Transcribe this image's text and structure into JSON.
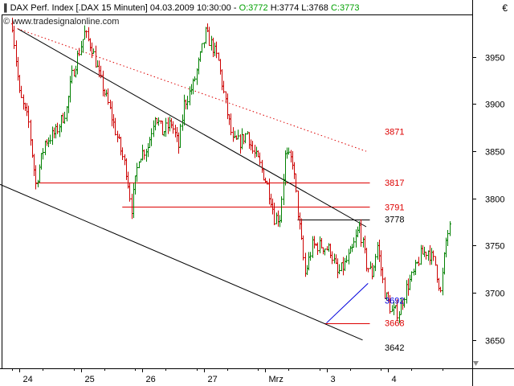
{
  "header": {
    "logo_glyph": "∥",
    "instrument": "DAX Perf. Index [.DAX  15 Minuten]",
    "datetime": "04.03.2009 10:30:00",
    "open": "O:3772",
    "high": "H:3774",
    "low": "L:3768",
    "close": "C:3773",
    "watermark": "© www.tradesignalonline.com",
    "currency": "€"
  },
  "colors": {
    "open": "#00a000",
    "high": "#000000",
    "low": "#000000",
    "close": "#00a000",
    "bull": "#008000",
    "bear": "#cc0000",
    "resistance": "#dd0000",
    "support_up": "#0000dd",
    "trend": "#000000"
  },
  "chart_data": {
    "type": "ohlc",
    "title": "DAX Perf. Index [.DAX  15 Minuten]",
    "ylim": [
      3620,
      3995
    ],
    "y_ticks": [
      3650,
      3700,
      3750,
      3800,
      3850,
      3900,
      3950
    ],
    "x_labels": [
      {
        "label": "24",
        "x": 4
      },
      {
        "label": "25",
        "x": 38
      },
      {
        "label": "26",
        "x": 72
      },
      {
        "label": "27",
        "x": 106
      },
      {
        "label": "Mrz",
        "x": 140
      },
      {
        "label": "3",
        "x": 174
      },
      {
        "label": "4",
        "x": 208
      }
    ],
    "bars_count": 242,
    "path_anchors": [
      [
        0,
        3985
      ],
      [
        4,
        3910
      ],
      [
        9,
        3880
      ],
      [
        13,
        3815
      ],
      [
        18,
        3860
      ],
      [
        24,
        3870
      ],
      [
        30,
        3895
      ],
      [
        33,
        3930
      ],
      [
        36,
        3950
      ],
      [
        40,
        3975
      ],
      [
        44,
        3960
      ],
      [
        48,
        3930
      ],
      [
        53,
        3900
      ],
      [
        58,
        3865
      ],
      [
        63,
        3830
      ],
      [
        66,
        3790
      ],
      [
        70,
        3845
      ],
      [
        75,
        3855
      ],
      [
        79,
        3890
      ],
      [
        83,
        3870
      ],
      [
        88,
        3880
      ],
      [
        92,
        3855
      ],
      [
        95,
        3900
      ],
      [
        100,
        3920
      ],
      [
        104,
        3950
      ],
      [
        107,
        3975
      ],
      [
        111,
        3960
      ],
      [
        114,
        3945
      ],
      [
        118,
        3900
      ],
      [
        122,
        3860
      ],
      [
        126,
        3860
      ],
      [
        130,
        3870
      ],
      [
        133,
        3850
      ],
      [
        136,
        3840
      ],
      [
        140,
        3820
      ],
      [
        143,
        3800
      ],
      [
        145,
        3780
      ],
      [
        148,
        3780
      ],
      [
        151,
        3845
      ],
      [
        155,
        3840
      ],
      [
        158,
        3785
      ],
      [
        162,
        3720
      ],
      [
        166,
        3750
      ],
      [
        171,
        3750
      ],
      [
        176,
        3745
      ],
      [
        180,
        3720
      ],
      [
        184,
        3730
      ],
      [
        188,
        3745
      ],
      [
        192,
        3770
      ],
      [
        196,
        3730
      ],
      [
        199,
        3720
      ],
      [
        202,
        3750
      ],
      [
        206,
        3700
      ],
      [
        210,
        3680
      ],
      [
        214,
        3680
      ],
      [
        218,
        3705
      ],
      [
        222,
        3720
      ],
      [
        226,
        3740
      ],
      [
        230,
        3745
      ],
      [
        234,
        3730
      ],
      [
        237,
        3700
      ],
      [
        240,
        3755
      ],
      [
        242,
        3773
      ]
    ],
    "trend_lines": [
      {
        "name": "resistance",
        "from": [
          3,
          3980
        ],
        "to": [
          196,
          3770
        ],
        "style": "solid",
        "color": "#000000"
      },
      {
        "name": "resistance-parallel",
        "from": [
          3,
          3980
        ],
        "to": [
          196,
          3850
        ],
        "style": "dotted",
        "color": "#dd0000"
      },
      {
        "name": "support",
        "from": [
          -25,
          3830
        ],
        "to": [
          194,
          3650
        ],
        "style": "solid",
        "color": "#000000"
      },
      {
        "name": "uptrend",
        "from": [
          174,
          3668
        ],
        "to": [
          197,
          3710
        ],
        "style": "solid",
        "color": "#0000dd"
      }
    ],
    "levels": [
      {
        "value": 3871,
        "label": "3871",
        "color": "#dd0000",
        "line": false,
        "x_from": 174,
        "x_to": 198
      },
      {
        "value": 3817,
        "label": "3817",
        "color": "#dd0000",
        "line": true,
        "x_from": 13,
        "x_to": 198
      },
      {
        "value": 3791,
        "label": "3791",
        "color": "#dd0000",
        "line": true,
        "x_from": 61,
        "x_to": 198
      },
      {
        "value": 3778,
        "label": "3778",
        "color": "#000000",
        "line": true,
        "x_from": 158,
        "x_to": 198
      },
      {
        "value": 3692,
        "label": "3692",
        "color": "#0000dd",
        "line": false,
        "x_from": 174,
        "x_to": 198
      },
      {
        "value": 3668,
        "label": "3668",
        "color": "#dd0000",
        "line": true,
        "x_from": 173,
        "x_to": 198
      },
      {
        "value": 3642,
        "label": "3642",
        "color": "#000000",
        "line": false,
        "x_from": 174,
        "x_to": 198
      }
    ]
  }
}
